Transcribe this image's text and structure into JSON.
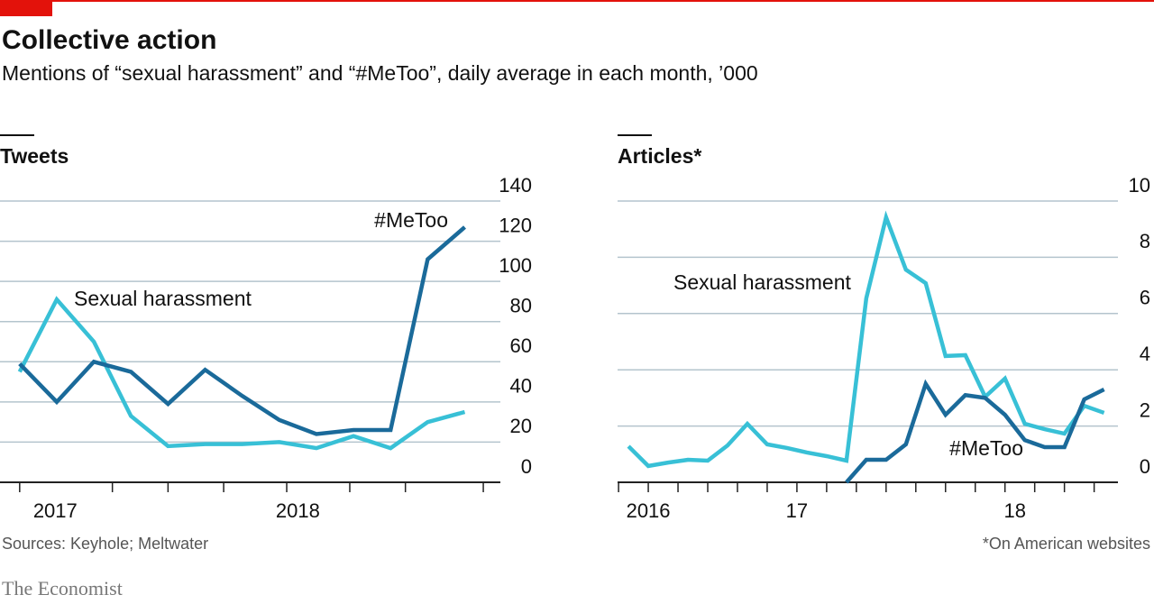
{
  "title": "Collective action",
  "subtitle": "Mentions of  “sexual harassment” and “#MeToo”, daily average in each month, ’000",
  "source": "Sources: Keyhole; Meltwater",
  "footnote": "*On American websites",
  "brand": "The Economist",
  "chart_data": [
    {
      "type": "line",
      "title": "Tweets",
      "x": [
        0,
        1,
        2,
        3,
        4,
        5,
        6,
        7,
        8,
        9,
        10,
        11,
        12
      ],
      "xlim": [
        -0.53,
        12.96
      ],
      "xticks": [
        {
          "value": 0.96,
          "label": "2017"
        },
        {
          "value": 7.5,
          "label": "2018"
        }
      ],
      "xminorticks": [
        0,
        2.5,
        4,
        5.5,
        7.2,
        8.9,
        10.4,
        12.5
      ],
      "ylim": [
        0,
        140
      ],
      "yticks": [
        0,
        20,
        40,
        60,
        80,
        100,
        120,
        140
      ],
      "grid": true,
      "series": [
        {
          "name": "Sexual harassment",
          "color": "#38c0d6",
          "values": [
            55,
            91,
            70,
            33,
            18,
            19,
            19,
            20,
            17,
            23,
            17,
            30,
            35
          ]
        },
        {
          "name": "#MeToo",
          "color": "#1a6a9a",
          "values": [
            59,
            40,
            60,
            55,
            39,
            56,
            43,
            31,
            24,
            26,
            26,
            111,
            127
          ]
        }
      ]
    },
    {
      "type": "line",
      "title": "Articles*",
      "x": [
        0,
        1,
        2,
        3,
        4,
        5,
        6,
        7,
        8,
        9,
        10,
        11,
        12,
        13,
        14,
        15,
        16,
        17,
        18,
        19,
        20,
        21,
        22,
        23,
        24
      ],
      "xlim": [
        -0.55,
        24.7
      ],
      "xticks": [
        {
          "value": 1,
          "label": "2016"
        },
        {
          "value": 8.5,
          "label": "17"
        },
        {
          "value": 19.5,
          "label": "18"
        }
      ],
      "xminorticks": [
        -0.5,
        1,
        2.5,
        4,
        5.5,
        7,
        8.5,
        10,
        11.5,
        13,
        14.5,
        16,
        17.5,
        19,
        20.5,
        22,
        23.5
      ],
      "ylim": [
        0,
        10
      ],
      "yticks": [
        0,
        2,
        4,
        6,
        8,
        10
      ],
      "grid": true,
      "series": [
        {
          "name": "Sexual harassment",
          "color": "#38c0d6",
          "values": [
            1.28,
            0.58,
            0.7,
            0.8,
            0.77,
            1.31,
            2.08,
            1.35,
            1.22,
            1.06,
            0.93,
            0.77,
            6.54,
            9.42,
            7.56,
            7.08,
            4.49,
            4.52,
            3.04,
            3.69,
            2.08,
            1.89,
            1.73,
            2.72,
            2.47
          ]
        },
        {
          "name": "#MeToo",
          "color": "#1a6a9a",
          "values": [
            null,
            null,
            null,
            null,
            null,
            null,
            null,
            null,
            null,
            null,
            null,
            0,
            0.8,
            0.8,
            1.35,
            3.5,
            2.4,
            3.1,
            3.0,
            2.4,
            1.5,
            1.25,
            1.25,
            2.95,
            3.3
          ]
        }
      ]
    }
  ]
}
